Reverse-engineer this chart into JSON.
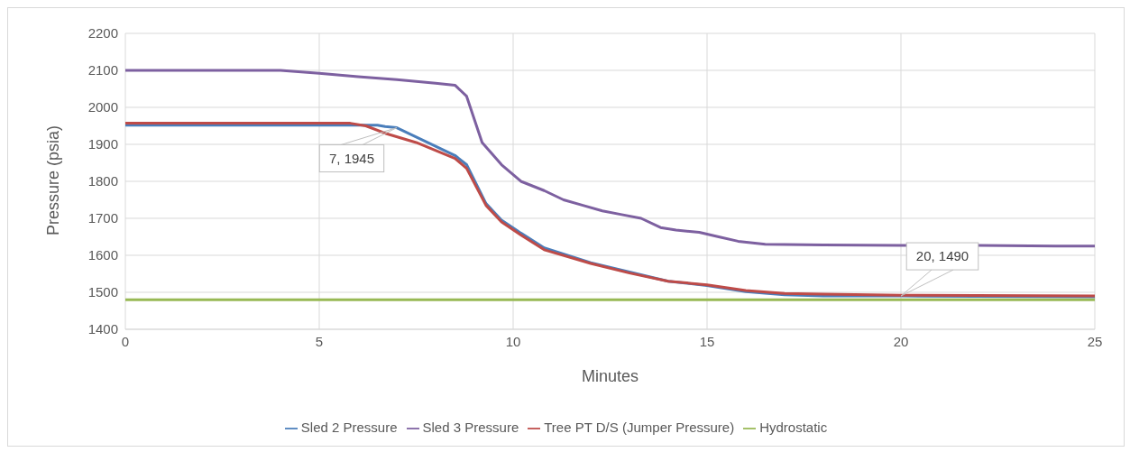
{
  "chart_data": {
    "type": "line",
    "xlabel": "Minutes",
    "ylabel": "Pressure (psia)",
    "xlim": [
      0,
      25
    ],
    "xticks": [
      0,
      5,
      10,
      15,
      20,
      25
    ],
    "ylim": [
      1400,
      2200
    ],
    "yticks": [
      1400,
      1500,
      1600,
      1700,
      1800,
      1900,
      2000,
      2100,
      2200
    ],
    "grid": true,
    "legend": "bottom",
    "marker": "none",
    "line_style": "solid",
    "series": [
      {
        "name": "Sled 2 Pressure",
        "color": "#4a7ebb",
        "x": [
          0,
          6.5,
          6.7,
          7,
          8.5,
          8.8,
          9.3,
          9.7,
          10.2,
          10.8,
          12,
          13,
          14,
          15,
          16,
          17,
          18,
          20,
          25
        ],
        "values": [
          1952,
          1952,
          1948,
          1945,
          1870,
          1845,
          1740,
          1695,
          1660,
          1620,
          1580,
          1555,
          1530,
          1518,
          1502,
          1493,
          1490,
          1490,
          1488
        ]
      },
      {
        "name": "Sled 3 Pressure",
        "color": "#7d60a0",
        "x": [
          0,
          4,
          5,
          6,
          7,
          8,
          8.5,
          8.8,
          9.2,
          9.7,
          10.2,
          10.8,
          11.3,
          11.8,
          12.3,
          12.8,
          13.3,
          13.8,
          14.2,
          14.8,
          15.3,
          15.8,
          16.5,
          18,
          20,
          22,
          24,
          25
        ],
        "values": [
          2100,
          2100,
          2092,
          2083,
          2075,
          2065,
          2060,
          2030,
          1905,
          1845,
          1800,
          1775,
          1750,
          1735,
          1720,
          1710,
          1700,
          1675,
          1668,
          1662,
          1650,
          1638,
          1630,
          1628,
          1627,
          1627,
          1625,
          1625
        ]
      },
      {
        "name": "Tree PT D/S (Jumper Pressure)",
        "color": "#be4b48",
        "x": [
          0,
          5.8,
          6.2,
          6.7,
          7.5,
          8.5,
          8.8,
          9.3,
          9.7,
          10.2,
          10.8,
          12,
          13,
          14,
          15,
          16,
          17,
          18,
          20,
          25
        ],
        "values": [
          1957,
          1957,
          1950,
          1930,
          1905,
          1862,
          1835,
          1735,
          1690,
          1655,
          1615,
          1578,
          1552,
          1530,
          1520,
          1505,
          1497,
          1495,
          1492,
          1490
        ]
      },
      {
        "name": "Hydrostatic",
        "color": "#98b954",
        "x": [
          0,
          25
        ],
        "values": [
          1480,
          1480
        ]
      }
    ],
    "annotations": [
      {
        "text": "7, 1945",
        "x": 7,
        "y": 1945
      },
      {
        "text": "20, 1490",
        "x": 20,
        "y": 1490
      }
    ]
  }
}
